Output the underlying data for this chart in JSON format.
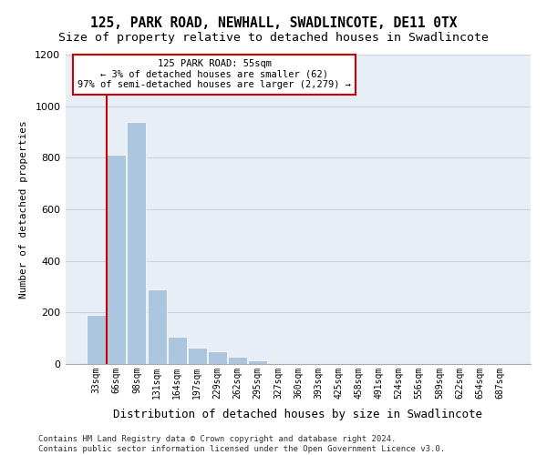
{
  "title": "125, PARK ROAD, NEWHALL, SWADLINCOTE, DE11 0TX",
  "subtitle": "Size of property relative to detached houses in Swadlincote",
  "xlabel": "Distribution of detached houses by size in Swadlincote",
  "ylabel": "Number of detached properties",
  "footnote": "Contains HM Land Registry data © Crown copyright and database right 2024.\nContains public sector information licensed under the Open Government Licence v3.0.",
  "categories": [
    "33sqm",
    "66sqm",
    "98sqm",
    "131sqm",
    "164sqm",
    "197sqm",
    "229sqm",
    "262sqm",
    "295sqm",
    "327sqm",
    "360sqm",
    "393sqm",
    "425sqm",
    "458sqm",
    "491sqm",
    "524sqm",
    "556sqm",
    "589sqm",
    "622sqm",
    "654sqm",
    "687sqm"
  ],
  "values": [
    190,
    810,
    940,
    290,
    105,
    65,
    50,
    30,
    15,
    0,
    0,
    0,
    0,
    0,
    0,
    0,
    0,
    0,
    0,
    0,
    0
  ],
  "bar_color": "#adc6e0",
  "annotation_line_color": "#cc0000",
  "annotation_box_edge_color": "#cc0000",
  "annotation_text": "125 PARK ROAD: 55sqm\n← 3% of detached houses are smaller (62)\n97% of semi-detached houses are larger (2,279) →",
  "property_bar_index": 0.67,
  "ylim": [
    0,
    1200
  ],
  "yticks": [
    0,
    200,
    400,
    600,
    800,
    1000,
    1200
  ],
  "grid_color": "#c8d4e4",
  "background_color": "#e8eef6",
  "title_fontsize": 10.5,
  "subtitle_fontsize": 9.5,
  "footnote_fontsize": 6.5,
  "ylabel_fontsize": 8,
  "xlabel_fontsize": 9
}
